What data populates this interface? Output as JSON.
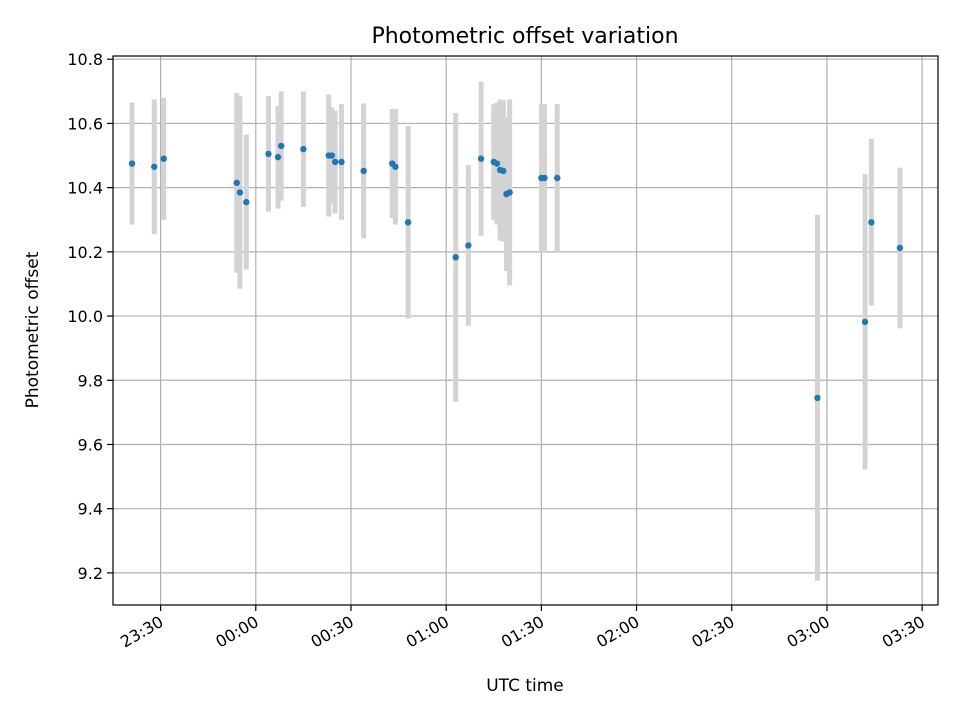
{
  "chart_data": {
    "type": "scatter",
    "title": "Photometric offset variation",
    "xlabel": "UTC time",
    "ylabel": "Photometric offset",
    "x_axis": {
      "kind": "time",
      "range": [
        "23:15",
        "03:35"
      ],
      "ticks": [
        "23:30",
        "00:00",
        "00:30",
        "01:00",
        "01:30",
        "02:00",
        "02:30",
        "03:00",
        "03:30"
      ]
    },
    "y_axis": {
      "range": [
        9.1,
        10.81
      ],
      "ticks": [
        "9.2",
        "9.4",
        "9.6",
        "9.8",
        "10.0",
        "10.2",
        "10.4",
        "10.6",
        "10.8"
      ]
    },
    "grid": true,
    "colors": {
      "point": "#1f77b4",
      "errorbar": "#d3d3d3",
      "grid": "#b0b0b0"
    },
    "series": [
      {
        "points": [
          {
            "t": "23:21",
            "y": 10.475,
            "err": 0.19
          },
          {
            "t": "23:28",
            "y": 10.465,
            "err": 0.21
          },
          {
            "t": "23:31",
            "y": 10.49,
            "err": 0.19
          },
          {
            "t": "23:54",
            "y": 10.415,
            "err": 0.28
          },
          {
            "t": "23:55",
            "y": 10.385,
            "err": 0.3
          },
          {
            "t": "23:57",
            "y": 10.355,
            "err": 0.21
          },
          {
            "t": "00:04",
            "y": 10.505,
            "err": 0.18
          },
          {
            "t": "00:07",
            "y": 10.495,
            "err": 0.16
          },
          {
            "t": "00:08",
            "y": 10.53,
            "err": 0.17
          },
          {
            "t": "00:15",
            "y": 10.52,
            "err": 0.18
          },
          {
            "t": "00:23",
            "y": 10.5,
            "err": 0.19
          },
          {
            "t": "00:24",
            "y": 10.5,
            "err": 0.15
          },
          {
            "t": "00:25",
            "y": 10.48,
            "err": 0.16
          },
          {
            "t": "00:27",
            "y": 10.48,
            "err": 0.18
          },
          {
            "t": "00:34",
            "y": 10.452,
            "err": 0.21
          },
          {
            "t": "00:43",
            "y": 10.475,
            "err": 0.17
          },
          {
            "t": "00:44",
            "y": 10.465,
            "err": 0.18
          },
          {
            "t": "00:48",
            "y": 10.292,
            "err": 0.3
          },
          {
            "t": "01:03",
            "y": 10.183,
            "err": 0.45
          },
          {
            "t": "01:07",
            "y": 10.22,
            "err": 0.25
          },
          {
            "t": "01:11",
            "y": 10.49,
            "err": 0.24
          },
          {
            "t": "01:15",
            "y": 10.48,
            "err": 0.18
          },
          {
            "t": "01:16",
            "y": 10.475,
            "err": 0.19
          },
          {
            "t": "01:17",
            "y": 10.455,
            "err": 0.22
          },
          {
            "t": "01:18",
            "y": 10.452,
            "err": 0.22
          },
          {
            "t": "01:19",
            "y": 10.38,
            "err": 0.24
          },
          {
            "t": "01:20",
            "y": 10.385,
            "err": 0.29
          },
          {
            "t": "01:30",
            "y": 10.43,
            "err": 0.23
          },
          {
            "t": "01:31",
            "y": 10.43,
            "err": 0.23
          },
          {
            "t": "01:35",
            "y": 10.43,
            "err": 0.23
          },
          {
            "t": "02:57",
            "y": 9.745,
            "err": 0.57
          },
          {
            "t": "03:12",
            "y": 9.982,
            "err": 0.46
          },
          {
            "t": "03:14",
            "y": 10.292,
            "err": 0.26
          },
          {
            "t": "03:23",
            "y": 10.212,
            "err": 0.25
          }
        ]
      }
    ]
  }
}
